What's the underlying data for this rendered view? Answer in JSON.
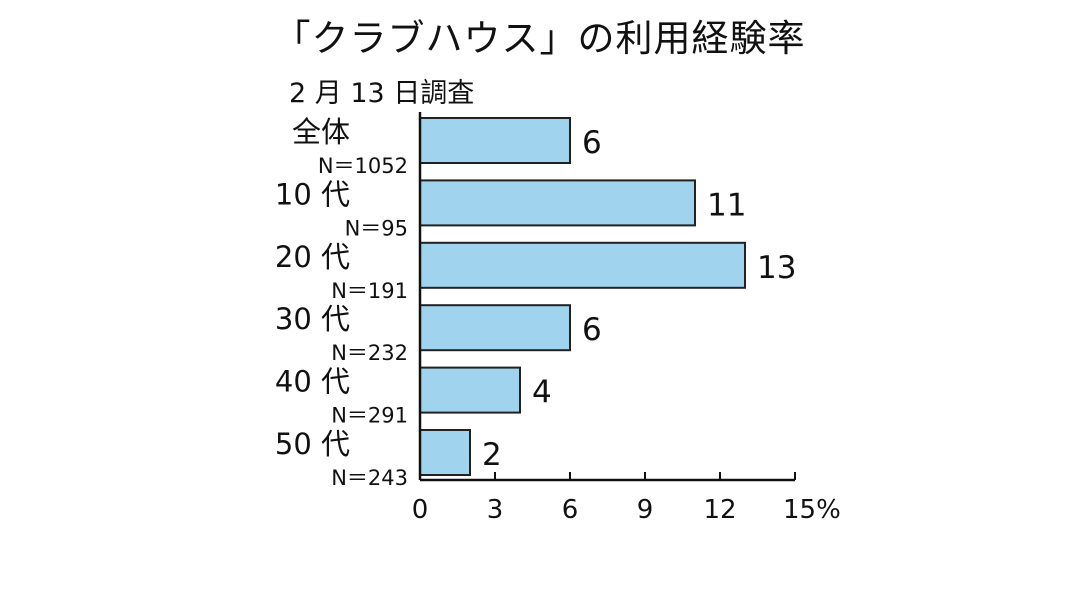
{
  "chart_data": {
    "type": "bar",
    "orientation": "horizontal",
    "title": "「クラブハウス」の利用経験率",
    "subtitle": "2 月 13 日調査",
    "categories": [
      "全体",
      "10 代",
      "20 代",
      "30 代",
      "40 代",
      "50 代"
    ],
    "sample_sizes": [
      "N＝1052",
      "N＝95",
      "N＝191",
      "N＝232",
      "N＝291",
      "N＝243"
    ],
    "values": [
      6,
      11,
      13,
      6,
      4,
      2
    ],
    "value_labels": [
      "6",
      "11",
      "13",
      "6",
      "4",
      "2"
    ],
    "x_ticks": [
      0,
      3,
      6,
      9,
      12,
      15
    ],
    "x_tick_labels": [
      "0",
      "3",
      "6",
      "9",
      "12",
      "15%"
    ],
    "xlim": [
      0,
      15
    ],
    "unit": "%",
    "grid": false,
    "legend": "none",
    "colors": {
      "bar_fill": "#9fd3ee",
      "bar_stroke": "#222222",
      "axis": "#111111"
    }
  }
}
